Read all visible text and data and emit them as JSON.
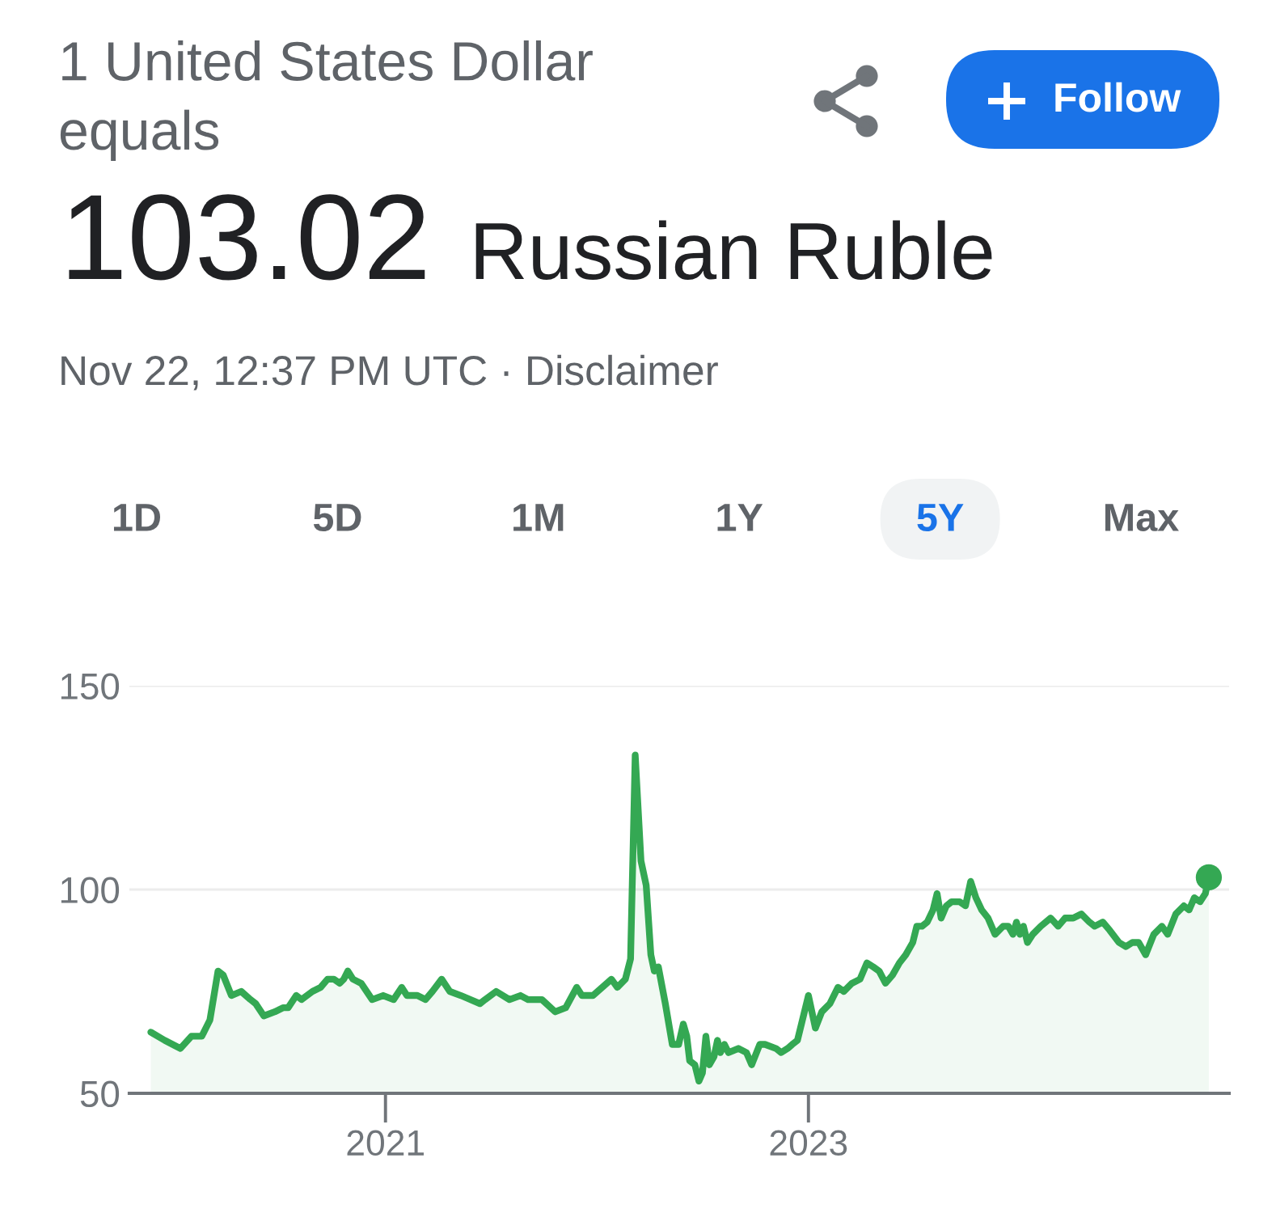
{
  "chart_data": {
    "type": "area",
    "title": "1 United States Dollar\nequals",
    "subtitle": "Nov 22, 12:37 PM UTC · Disclaimer",
    "annotations": [
      "103.02",
      "Russian Ruble",
      "Follow",
      "1D",
      "5D",
      "1M",
      "1Y",
      "5Y",
      "Max"
    ],
    "xlim": [
      "2019-10-17",
      "2024-12-27"
    ],
    "xticks": [
      {
        "value": "2021-01-01",
        "label": "2021"
      },
      {
        "value": "2023-01-01",
        "label": "2023"
      }
    ],
    "ylim": [
      50,
      150
    ],
    "yticks": [
      50,
      100,
      150
    ],
    "grid": "y",
    "line_style": "solid",
    "series": [
      {
        "color": "#34a853",
        "x": [
          "2019-11-23",
          "2019-12-17",
          "2020-01-13",
          "2020-02-01",
          "2020-02-19",
          "2020-03-04",
          "2020-03-18",
          "2020-03-27",
          "2020-04-10",
          "2020-04-27",
          "2020-05-13",
          "2020-05-22",
          "2020-06-05",
          "2020-06-24",
          "2020-07-08",
          "2020-07-17",
          "2020-07-31",
          "2020-08-09",
          "2020-08-28",
          "2020-09-11",
          "2020-09-23",
          "2020-10-04",
          "2020-10-14",
          "2020-10-21",
          "2020-10-28",
          "2020-11-06",
          "2020-11-20",
          "2020-12-09",
          "2020-12-28",
          "2021-01-15",
          "2021-01-29",
          "2021-02-07",
          "2021-02-25",
          "2021-03-11",
          "2021-03-23",
          "2021-04-08",
          "2021-04-22",
          "2021-05-11",
          "2021-06-13",
          "2021-06-22",
          "2021-07-11",
          "2021-08-03",
          "2021-08-22",
          "2021-09-04",
          "2021-09-28",
          "2021-10-21",
          "2021-11-08",
          "2021-11-27",
          "2021-12-06",
          "2021-12-25",
          "2022-01-26",
          "2022-02-05",
          "2022-02-19",
          "2022-02-28",
          "2022-03-08",
          "2022-03-18",
          "2022-03-27",
          "2022-04-04",
          "2022-04-10",
          "2022-04-17",
          "2022-04-29",
          "2022-05-11",
          "2022-05-22",
          "2022-05-30",
          "2022-06-05",
          "2022-06-10",
          "2022-06-19",
          "2022-06-26",
          "2022-07-02",
          "2022-07-08",
          "2022-07-14",
          "2022-07-22",
          "2022-07-28",
          "2022-08-02",
          "2022-08-09",
          "2022-08-16",
          "2022-09-02",
          "2022-09-16",
          "2022-09-25",
          "2022-10-09",
          "2022-10-18",
          "2022-11-06",
          "2022-11-15",
          "2022-11-26",
          "2022-12-04",
          "2022-12-13",
          "2023-01-01",
          "2023-01-13",
          "2023-01-24",
          "2023-02-07",
          "2023-02-21",
          "2023-03-03",
          "2023-03-17",
          "2023-03-31",
          "2023-04-12",
          "2023-04-23",
          "2023-05-03",
          "2023-05-14",
          "2023-05-26",
          "2023-06-07",
          "2023-06-18",
          "2023-06-30",
          "2023-07-07",
          "2023-07-16",
          "2023-07-25",
          "2023-08-04",
          "2023-08-11",
          "2023-08-18",
          "2023-08-27",
          "2023-09-05",
          "2023-09-19",
          "2023-09-29",
          "2023-10-08",
          "2023-10-17",
          "2023-10-27",
          "2023-11-07",
          "2023-11-19",
          "2023-12-03",
          "2023-12-12",
          "2023-12-20",
          "2023-12-26",
          "2024-01-01",
          "2024-01-07",
          "2024-01-14",
          "2024-01-23",
          "2024-02-06",
          "2024-02-23",
          "2024-03-07",
          "2024-03-19",
          "2024-04-02",
          "2024-04-16",
          "2024-04-30",
          "2024-05-09",
          "2024-05-23",
          "2024-06-04",
          "2024-06-20",
          "2024-07-02",
          "2024-07-13",
          "2024-07-24",
          "2024-08-05",
          "2024-08-19",
          "2024-09-02",
          "2024-09-12",
          "2024-09-26",
          "2024-10-10",
          "2024-10-19",
          "2024-10-28",
          "2024-11-07",
          "2024-11-16",
          "2024-11-22"
        ],
        "values": [
          65,
          63,
          61,
          64,
          64,
          68,
          80,
          79,
          74,
          75,
          73,
          72,
          69,
          70,
          71,
          71,
          74,
          73,
          75,
          76,
          78,
          78,
          77,
          78,
          80,
          78,
          77,
          73,
          74,
          73,
          76,
          74,
          74,
          73,
          75,
          78,
          75,
          74,
          72,
          73,
          75,
          73,
          74,
          73,
          73,
          70,
          71,
          76,
          74,
          74,
          78,
          76,
          78,
          83,
          133,
          107,
          101,
          84,
          80,
          81,
          72,
          62,
          62,
          67,
          64,
          58,
          57,
          53,
          55,
          64,
          57,
          59,
          63,
          60,
          62,
          60,
          61,
          60,
          57,
          62,
          62,
          61,
          60,
          61,
          62,
          63,
          74,
          66,
          70,
          72,
          76,
          75,
          77,
          78,
          82,
          81,
          80,
          77,
          79,
          82,
          84,
          87,
          91,
          91,
          92,
          95,
          99,
          93,
          96,
          97,
          97,
          96,
          102,
          98,
          95,
          93,
          89,
          91,
          91,
          89,
          92,
          89,
          91,
          87,
          89,
          91,
          93,
          91,
          93,
          93,
          94,
          92,
          91,
          92,
          90,
          87,
          86,
          87,
          87,
          84,
          89,
          91,
          89,
          94,
          96,
          95,
          98,
          97,
          99,
          103
        ]
      },
      {
        "type": "scatter",
        "color": "#34a853",
        "marker": "circle",
        "x": [
          "2024-11-22"
        ],
        "values": [
          103
        ]
      }
    ]
  }
}
